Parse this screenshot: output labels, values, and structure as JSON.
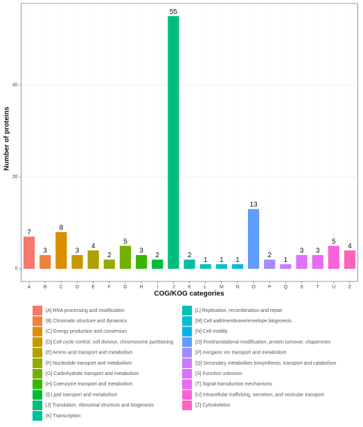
{
  "chart_data": {
    "type": "bar",
    "x_label": "COG/KOG categories",
    "y_label": "Number of proteins",
    "categories": [
      "A",
      "B",
      "C",
      "D",
      "E",
      "F",
      "G",
      "H",
      "I",
      "J",
      "K",
      "L",
      "M",
      "N",
      "O",
      "P",
      "Q",
      "S",
      "T",
      "U",
      "Z"
    ],
    "values": [
      7,
      3,
      8,
      3,
      4,
      2,
      5,
      3,
      2,
      55,
      2,
      1,
      1,
      1,
      13,
      2,
      1,
      3,
      3,
      5,
      4
    ],
    "colors": [
      "#F8766D",
      "#EC823C",
      "#DB8E00",
      "#C79800",
      "#B0A000",
      "#96A900",
      "#72B000",
      "#39B600",
      "#00BA38",
      "#00BE7A",
      "#00C0A0",
      "#00C1B9",
      "#00BFD0",
      "#00B8E5",
      "#619CFF",
      "#9F8CFF",
      "#C77CFF",
      "#DC71FA",
      "#E76BF3",
      "#FA62DB",
      "#FF62BC"
    ],
    "legend_labels": [
      "[A] RNA processing and modification",
      "[B] Chromatin structure and dynamics",
      "[C] Energy production and conversion",
      "[D] Cell cycle control, cell division, chromosome partitioning",
      "[E] Amino acid transport and metabolism",
      "[F] Nucleotide transport and metabolism",
      "[G] Carbohydrate transport and metabolism",
      "[H] Coenzyme transport and metabolism",
      "[I] Lipid transport and metabolism",
      "[J] Translation, ribosomal structure and biogenesis",
      "[K] Transcription",
      "[L] Replication, recombination and repair",
      "[M] Cell wall/membrane/envelope biogenesis",
      "[N] Cell motility",
      "[O] Posttranslational modification, protein turnover, chaperones",
      "[P] Inorganic ion transport and metabolism",
      "[Q] Secondary metabolites biosynthesis, transport and catabolism",
      "[S] Function unknown",
      "[T] Signal transduction mechanisms",
      "[U] Intracellular trafficking, secretion, and vesicular transport",
      "[Z] Cytoskeleton"
    ],
    "ylim": [
      -2.75,
      57.75
    ],
    "yticks": [
      0,
      20,
      40
    ],
    "grid": true
  }
}
